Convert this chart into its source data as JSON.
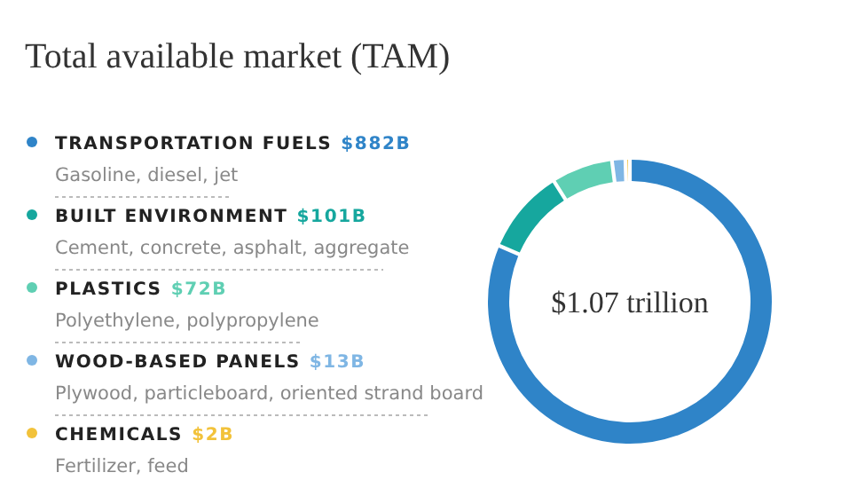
{
  "chart_data": {
    "type": "donut",
    "title": "Total available market (TAM)",
    "categories": [
      "TRANSPORTATION FUELS",
      "BUILT ENVIRONMENT",
      "PLASTICS",
      "WOOD-BASED PANELS",
      "CHEMICALS"
    ],
    "values": [
      882,
      101,
      72,
      13,
      2
    ],
    "value_labels": [
      "$882B",
      "$101B",
      "$72B",
      "$13B",
      "$2B"
    ],
    "colors": [
      "#2f84c8",
      "#16a79e",
      "#5fcfb3",
      "#7fb6e4",
      "#f2c23a"
    ],
    "legend": "left",
    "annotations": [
      "$1.07 trillion",
      "Gasoline, diesel, jet",
      "Cement, concrete, asphalt, aggregate",
      "Polyethylene, polypropylene",
      "Plywood, particleboard, oriented strand board",
      "Fertilizer, feed"
    ]
  }
}
